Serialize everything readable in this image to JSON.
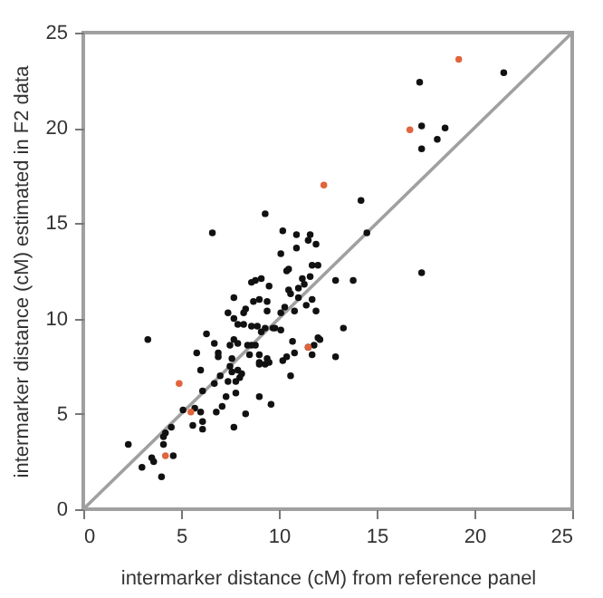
{
  "chart_data": {
    "type": "scatter",
    "xlabel": "intermarker distance (cM) from reference panel",
    "ylabel": "intermarker distance (cM) estimated in F2 data",
    "xlim": [
      0,
      25
    ],
    "ylim": [
      0,
      25
    ],
    "xticks": [
      0,
      5,
      10,
      15,
      20,
      25
    ],
    "yticks": [
      0,
      5,
      10,
      15,
      20,
      25
    ],
    "grid": false,
    "marker": "circle",
    "series": [
      {
        "type": "line",
        "color": "#a0a0a0",
        "line_style": "solid",
        "marker": "none",
        "x": [
          0,
          25
        ],
        "values": [
          0,
          25
        ]
      },
      {
        "color": "#111111",
        "x": [
          2.3,
          3.3,
          3.0,
          3.5,
          3.6,
          4.0,
          4.1,
          4.1,
          4.2,
          4.5,
          4.6,
          5.1,
          5.6,
          5.7,
          5.8,
          6.0,
          6.0,
          6.1,
          6.1,
          6.1,
          6.3,
          6.6,
          6.7,
          6.7,
          6.8,
          6.9,
          6.9,
          7.0,
          7.1,
          7.3,
          7.4,
          7.4,
          7.5,
          7.5,
          7.6,
          7.6,
          7.7,
          7.7,
          7.7,
          7.7,
          7.8,
          7.8,
          7.9,
          7.9,
          7.9,
          8.0,
          8.1,
          8.2,
          8.2,
          8.3,
          8.3,
          8.4,
          8.5,
          8.6,
          8.6,
          8.6,
          8.7,
          8.8,
          8.8,
          8.9,
          9.0,
          9.0,
          9.0,
          9.0,
          9.0,
          9.1,
          9.1,
          9.3,
          9.3,
          9.3,
          9.4,
          9.4,
          9.4,
          9.5,
          9.5,
          9.6,
          9.7,
          9.8,
          10.1,
          10.1,
          10.1,
          10.2,
          10.2,
          10.3,
          10.4,
          10.4,
          10.5,
          10.5,
          10.6,
          10.6,
          10.7,
          10.8,
          10.8,
          10.9,
          10.9,
          11.0,
          11.0,
          11.2,
          11.3,
          11.4,
          11.5,
          11.5,
          11.6,
          11.6,
          11.7,
          11.7,
          11.7,
          11.8,
          11.9,
          11.9,
          12.0,
          12.0,
          12.1,
          12.9,
          12.9,
          13.3,
          13.8,
          14.2,
          14.5,
          17.2,
          17.3,
          17.3,
          17.3,
          18.1,
          18.5,
          21.5
        ],
        "values": [
          3.4,
          8.9,
          2.2,
          2.7,
          2.5,
          1.7,
          3.4,
          3.8,
          4.0,
          4.3,
          2.8,
          5.2,
          4.4,
          5.3,
          8.2,
          5.1,
          7.3,
          6.2,
          4.6,
          4.2,
          9.2,
          14.5,
          8.7,
          6.6,
          5.1,
          8.2,
          8.0,
          7.0,
          5.4,
          5.9,
          10.3,
          6.7,
          8.6,
          7.5,
          7.9,
          7.2,
          4.3,
          8.9,
          10.0,
          11.1,
          6.1,
          6.7,
          7.3,
          8.7,
          9.7,
          6.9,
          7.1,
          9.7,
          10.3,
          10.5,
          5.0,
          8.6,
          8.1,
          11.9,
          8.6,
          9.6,
          10.9,
          12.0,
          8.6,
          9.6,
          5.9,
          7.7,
          11.0,
          8.1,
          7.6,
          9.3,
          12.1,
          15.5,
          7.6,
          9.5,
          10.9,
          10.4,
          7.9,
          7.7,
          11.7,
          5.5,
          9.5,
          9.5,
          13.4,
          10.3,
          9.4,
          14.6,
          7.8,
          10.6,
          12.5,
          8.0,
          11.5,
          12.6,
          7.0,
          11.3,
          8.8,
          8.2,
          10.4,
          13.7,
          14.4,
          11.1,
          11.6,
          12.1,
          11.8,
          10.7,
          8.5,
          14.1,
          14.4,
          12.2,
          11.0,
          8.1,
          12.8,
          8.6,
          10.4,
          13.9,
          12.8,
          9.0,
          8.9,
          8.0,
          12.0,
          9.5,
          12.0,
          16.2,
          14.5,
          22.4,
          12.4,
          18.9,
          20.1,
          19.4,
          20.0,
          22.9
        ]
      },
      {
        "color": "#e0643c",
        "x": [
          4.9,
          4.2,
          5.5,
          12.3,
          11.5,
          16.7,
          19.2
        ],
        "values": [
          6.6,
          2.8,
          5.1,
          17.0,
          8.5,
          19.9,
          23.6
        ]
      }
    ]
  }
}
